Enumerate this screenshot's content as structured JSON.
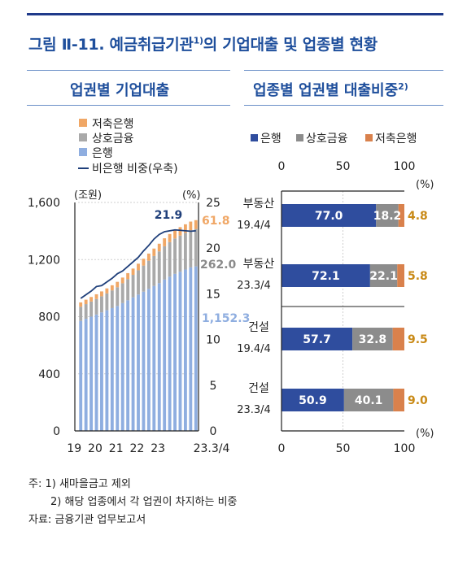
{
  "figure_title": "그림 Ⅱ-11. 예금취급기관",
  "figure_title_note": "1)",
  "figure_title_suffix": "의 기업대출 및 업종별 현황",
  "colors": {
    "title_blue": "#1f4f9c",
    "bank": "#8faee0",
    "mutual": "#a9a9a9",
    "savings": "#f0a766",
    "ratio_line": "#1f3f7a",
    "bank_bar": "#2f4d9e",
    "mutual_bar": "#8c8c8c",
    "savings_bar": "#d9814c",
    "savings_label": "#c98a17"
  },
  "chart_data": [
    {
      "type": "bar",
      "panel_title": "업권별 기업대출",
      "stacked": true,
      "legend": [
        "저축은행",
        "상호금융",
        "은행",
        "비은행 비중(우축)"
      ],
      "y_unit": "(조원)",
      "y2_unit": "(%)",
      "ylim": [
        0,
        1600
      ],
      "yticks": [
        0,
        400,
        800,
        1200,
        1600
      ],
      "y2lim": [
        0,
        25
      ],
      "y2ticks": [
        0,
        5,
        10,
        15,
        20,
        25
      ],
      "xticks": [
        "19",
        "20",
        "21",
        "22",
        "23",
        "23.3/4"
      ],
      "bank": [
        770,
        785,
        800,
        815,
        830,
        845,
        860,
        875,
        895,
        915,
        935,
        955,
        975,
        995,
        1015,
        1035,
        1060,
        1080,
        1100,
        1115,
        1130,
        1145,
        1152.3
      ],
      "mutual": [
        100,
        103,
        106,
        109,
        113,
        118,
        124,
        131,
        139,
        148,
        158,
        170,
        183,
        197,
        210,
        222,
        233,
        242,
        248,
        253,
        257,
        260,
        262.0
      ],
      "savings": [
        30,
        31,
        32,
        33,
        34,
        35,
        36,
        38,
        40,
        42,
        44,
        46,
        48,
        50,
        52,
        54,
        56,
        57,
        58,
        59,
        60,
        61,
        61.8
      ],
      "ratio": [
        14.5,
        14.9,
        15.3,
        15.8,
        15.9,
        16.3,
        16.7,
        17.2,
        17.5,
        18.0,
        18.5,
        19.0,
        19.7,
        20.3,
        21.0,
        21.5,
        21.8,
        21.9,
        22.0,
        21.95,
        21.9,
        21.85,
        21.9
      ],
      "labels": {
        "ratio": "21.9",
        "savings": "61.8",
        "mutual": "262.0",
        "bank": "1,152.3"
      }
    },
    {
      "type": "bar",
      "panel_title": "업종별 업권별 대출비중",
      "panel_title_note": "2)",
      "stacked": true,
      "horizontal": true,
      "legend": [
        "은행",
        "상호금융",
        "저축은행"
      ],
      "x_unit": "(%)",
      "xlim": [
        0,
        100
      ],
      "xticks": [
        0,
        50,
        100
      ],
      "categories": [
        {
          "name": "부동산",
          "date": "19.4/4",
          "bank": 77.0,
          "mutual": 18.2,
          "savings": 4.8
        },
        {
          "name": "부동산",
          "date": "23.3/4",
          "bank": 72.1,
          "mutual": 22.1,
          "savings": 5.8
        },
        {
          "name": "건설",
          "date": "19.4/4",
          "bank": 57.7,
          "mutual": 32.8,
          "savings": 9.5
        },
        {
          "name": "건설",
          "date": "23.3/4",
          "bank": 50.9,
          "mutual": 40.1,
          "savings": 9.0
        }
      ]
    }
  ],
  "notes": {
    "note1": "주: 1) 새마을금고 제외",
    "note2": "2) 해당 업종에서 각 업권이 차지하는 비중",
    "source": "자료: 금융기관 업무보고서"
  }
}
